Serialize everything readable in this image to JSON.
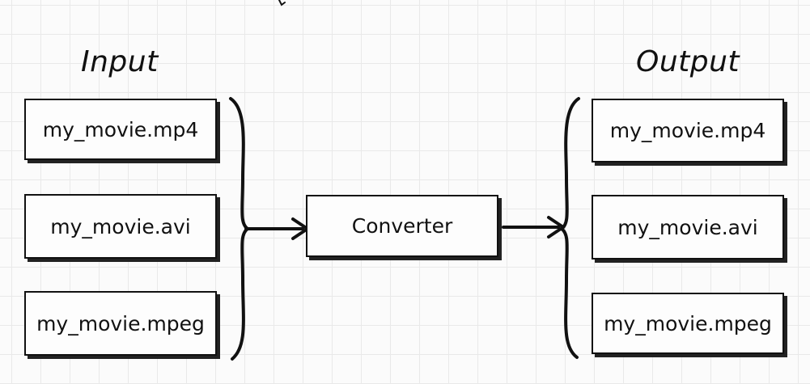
{
  "input": {
    "heading": "Input",
    "files": [
      {
        "label": "my_movie.mp4"
      },
      {
        "label": "my_movie.avi"
      },
      {
        "label": "my_movie.mpeg"
      }
    ]
  },
  "converter": {
    "label": "Converter"
  },
  "output": {
    "heading": "Output",
    "files": [
      {
        "label": "my_movie.mp4"
      },
      {
        "label": "my_movie.avi"
      },
      {
        "label": "my_movie.mpeg"
      }
    ]
  },
  "colors": {
    "stroke": "#111111",
    "grid": "#e9e9e9",
    "background": "#fbfbfb"
  }
}
